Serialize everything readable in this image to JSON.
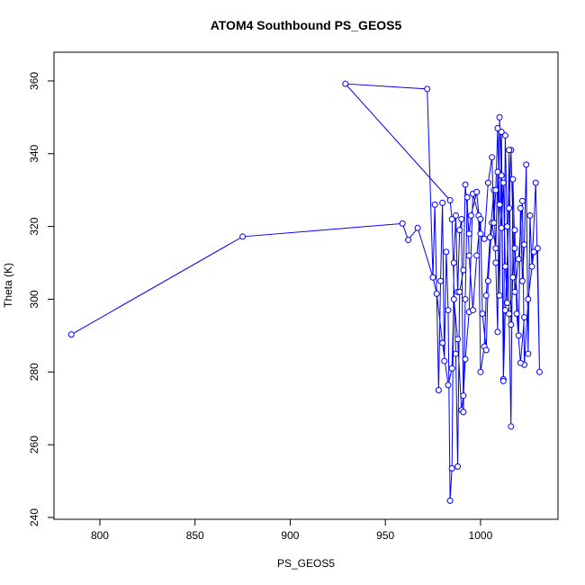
{
  "chart_data": {
    "type": "scatter",
    "title": "ATOM4 Southbound PS_GEOS5",
    "x_label": "PS_GEOS5",
    "y_label": "Theta (K)",
    "connect_points": true,
    "series": [
      {
        "color": "#0000ff",
        "x": [
          785,
          875,
          959,
          962,
          967,
          975,
          977,
          980,
          983,
          985,
          986,
          988,
          990,
          991,
          992,
          994,
          996,
          999,
          1000,
          1002,
          1003,
          1005,
          1007,
          1008,
          1009,
          1010,
          1011,
          1012,
          1013,
          1014,
          1015,
          1016,
          1017,
          1018,
          1020,
          1021,
          1022,
          1023,
          1024,
          1025,
          1026,
          1027,
          1029,
          1031,
          1030,
          1028,
          1025,
          1023,
          1022,
          1020,
          1018,
          1016,
          1015,
          1013,
          1012,
          1011,
          1010,
          1009,
          1008,
          1006,
          1004,
          1003,
          1001,
          1000,
          998,
          996,
          994,
          993,
          992,
          991,
          990,
          989,
          988,
          987,
          986,
          985,
          984,
          983,
          982,
          981,
          980,
          979,
          978,
          976,
          975,
          972,
          929,
          984,
          985,
          987,
          988,
          989,
          991,
          992,
          994,
          995,
          998,
          1000,
          1002,
          1004,
          1006,
          1007,
          1008,
          1009,
          1010,
          1011,
          1012,
          1013,
          1014,
          1015,
          1016,
          1017,
          1018,
          1019,
          1021,
          1023
        ],
        "values": [
          290.3,
          317.2,
          320.8,
          316.3,
          319.6,
          306,
          301.5,
          288,
          276.4,
          281,
          300,
          289,
          269.5,
          273.5,
          283.5,
          296.5,
          329,
          323,
          280,
          287,
          301,
          317,
          330,
          310,
          291,
          350,
          334,
          278,
          345,
          320,
          296,
          265,
          333,
          314,
          290,
          325,
          305,
          315,
          337,
          285,
          323,
          309,
          332,
          280,
          314,
          313,
          300,
          282,
          327,
          311,
          302,
          341,
          325,
          297,
          277.5,
          346,
          301,
          335,
          314,
          321,
          305,
          286,
          296,
          322,
          312,
          297,
          312,
          328,
          300,
          269,
          322,
          319,
          302,
          323,
          310,
          253.5,
          244.6,
          297,
          313,
          283,
          326.5,
          305,
          275,
          326,
          306,
          357.8,
          359.2,
          327.2,
          322,
          285,
          254,
          302,
          308,
          331.5,
          318,
          323,
          329.5,
          318,
          316.6,
          332,
          339,
          321,
          330,
          347,
          326,
          319.6,
          332,
          309,
          299,
          341,
          293,
          306,
          319,
          296,
          282.5,
          295
        ]
      }
    ],
    "xlim": [
      775.9,
      1040.7
    ],
    "xticks": [
      800,
      850,
      900,
      950,
      1000
    ],
    "ylim": [
      239.5,
      367.9
    ],
    "yticks": [
      240,
      260,
      280,
      300,
      320,
      340,
      360
    ]
  }
}
